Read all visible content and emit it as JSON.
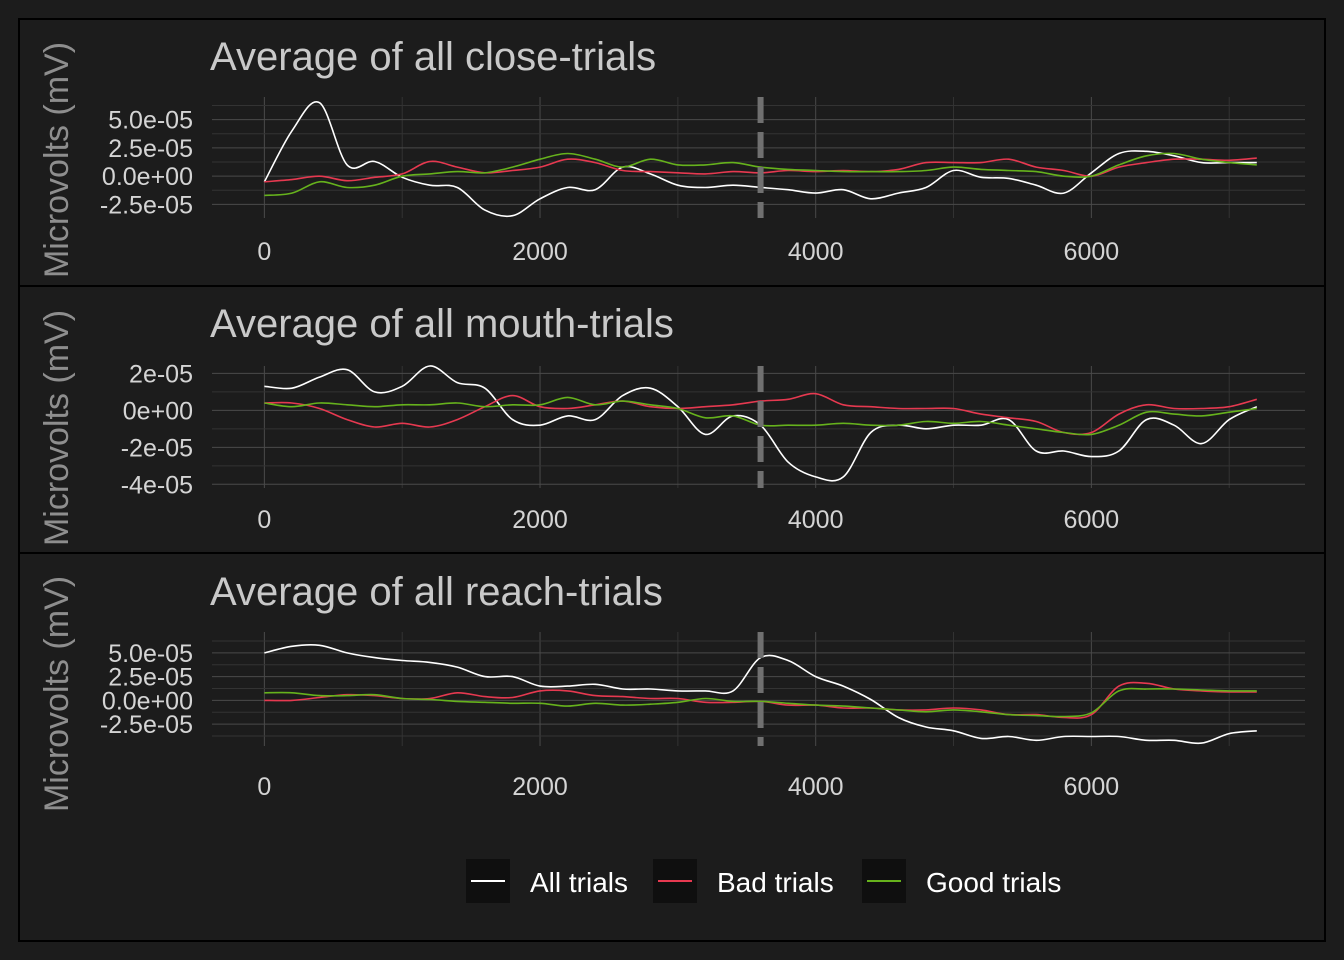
{
  "colors": {
    "background": "#1c1c1c",
    "panel_border": "#000000",
    "grid_major": "#4a4a4a",
    "grid_minor": "#333333",
    "event_marker": "#707070",
    "legend_key_bg": "#0f0f0f"
  },
  "legend": {
    "placement": "bottom",
    "entries": [
      {
        "label": "All trials",
        "color": "#ffffff"
      },
      {
        "label": "Bad trials",
        "color": "#e63950"
      },
      {
        "label": "Good trials",
        "color": "#66b21c"
      }
    ]
  },
  "chart_data": [
    {
      "type": "line",
      "title": "Average of all close-trials",
      "xlabel": "",
      "ylabel": "Microvolts (mV)",
      "xlim": [
        -380,
        7550
      ],
      "ylim": [
        -3.7e-05,
        7e-05
      ],
      "x_ticks": [
        0,
        2000,
        4000,
        6000
      ],
      "x_tick_labels": [
        "0",
        "2000",
        "4000",
        "6000"
      ],
      "y_ticks": [
        -2.5e-05,
        0,
        2.5e-05,
        5e-05
      ],
      "y_tick_labels": [
        "-2.5e-05",
        "0.0e+00",
        "2.5e-05",
        "5.0e-05"
      ],
      "event_line_x": 3600,
      "grid": true,
      "series": [
        {
          "name": "All trials",
          "x": [
            0,
            200,
            400,
            600,
            800,
            1000,
            1200,
            1400,
            1600,
            1800,
            2000,
            2200,
            2400,
            2600,
            2800,
            3000,
            3200,
            3400,
            3600,
            3800,
            4000,
            4200,
            4400,
            4600,
            4800,
            5000,
            5200,
            5400,
            5600,
            5800,
            6000,
            6200,
            6400,
            6600,
            6800,
            7000,
            7200
          ],
          "y": [
            -5e-06,
            4e-05,
            6.5e-05,
            1e-05,
            1.3e-05,
            -1e-06,
            -8e-06,
            -1e-05,
            -3e-05,
            -3.5e-05,
            -2e-05,
            -1e-05,
            -1.2e-05,
            8e-06,
            2e-06,
            -8e-06,
            -1e-05,
            -8e-06,
            -1e-05,
            -1.2e-05,
            -1.5e-05,
            -1.2e-05,
            -2e-05,
            -1.5e-05,
            -1e-05,
            5e-06,
            -1e-06,
            -2e-06,
            -8e-06,
            -1.5e-05,
            3e-06,
            2e-05,
            2.2e-05,
            1.8e-05,
            1.2e-05,
            1.2e-05,
            1.2e-05
          ]
        },
        {
          "name": "Bad trials",
          "x": [
            0,
            200,
            400,
            600,
            800,
            1000,
            1200,
            1400,
            1600,
            1800,
            2000,
            2200,
            2400,
            2600,
            2800,
            3000,
            3200,
            3400,
            3600,
            3800,
            4000,
            4200,
            4400,
            4600,
            4800,
            5000,
            5200,
            5400,
            5600,
            5800,
            6000,
            6200,
            6400,
            6600,
            6800,
            7000,
            7200
          ],
          "y": [
            -5e-06,
            -3e-06,
            0,
            -4e-06,
            -1e-06,
            2e-06,
            1.3e-05,
            8e-06,
            3e-06,
            5e-06,
            8e-06,
            1.5e-05,
            1.2e-05,
            5e-06,
            4e-06,
            3e-06,
            2e-06,
            4e-06,
            3e-06,
            5e-06,
            4e-06,
            5e-06,
            4e-06,
            6e-06,
            1.2e-05,
            1.2e-05,
            1.2e-05,
            1.5e-05,
            8e-06,
            5e-06,
            0,
            8e-06,
            1.2e-05,
            1.5e-05,
            1.5e-05,
            1.4e-05,
            1.6e-05
          ]
        },
        {
          "name": "Good trials",
          "x": [
            0,
            200,
            400,
            600,
            800,
            1000,
            1200,
            1400,
            1600,
            1800,
            2000,
            2200,
            2400,
            2600,
            2800,
            3000,
            3200,
            3400,
            3600,
            3800,
            4000,
            4200,
            4400,
            4600,
            4800,
            5000,
            5200,
            5400,
            5600,
            5800,
            6000,
            6200,
            6400,
            6600,
            6800,
            7000,
            7200
          ],
          "y": [
            -1.7e-05,
            -1.5e-05,
            -5e-06,
            -1e-05,
            -8e-06,
            0,
            2e-06,
            4e-06,
            3e-06,
            8e-06,
            1.5e-05,
            2e-05,
            1.5e-05,
            8e-06,
            1.5e-05,
            1e-05,
            1e-05,
            1.2e-05,
            8e-06,
            6e-06,
            5e-06,
            4e-06,
            4e-06,
            4e-06,
            5e-06,
            8e-06,
            6e-06,
            5e-06,
            4e-06,
            0,
            0,
            1e-05,
            1.8e-05,
            2e-05,
            1.5e-05,
            1.2e-05,
            1e-05
          ]
        }
      ]
    },
    {
      "type": "line",
      "title": "Average of all mouth-trials",
      "xlabel": "",
      "ylabel": "Microvolts (mV)",
      "xlim": [
        -380,
        7550
      ],
      "ylim": [
        -4.2e-05,
        2.4e-05
      ],
      "x_ticks": [
        0,
        2000,
        4000,
        6000
      ],
      "x_tick_labels": [
        "0",
        "2000",
        "4000",
        "6000"
      ],
      "y_ticks": [
        -4e-05,
        -2e-05,
        0,
        2e-05
      ],
      "y_tick_labels": [
        "-4e-05",
        "-2e-05",
        "0e+00",
        "2e-05"
      ],
      "event_line_x": 3600,
      "grid": true,
      "series": [
        {
          "name": "All trials",
          "x": [
            0,
            200,
            400,
            600,
            800,
            1000,
            1200,
            1400,
            1600,
            1800,
            2000,
            2200,
            2400,
            2600,
            2800,
            3000,
            3200,
            3400,
            3600,
            3800,
            4000,
            4200,
            4400,
            4600,
            4800,
            5000,
            5200,
            5400,
            5600,
            5800,
            6000,
            6200,
            6400,
            6600,
            6800,
            7000,
            7200
          ],
          "y": [
            1.3e-05,
            1.2e-05,
            1.8e-05,
            2.2e-05,
            1e-05,
            1.3e-05,
            2.4e-05,
            1.5e-05,
            1.2e-05,
            -5e-06,
            -8e-06,
            -3e-06,
            -5e-06,
            8e-06,
            1.2e-05,
            2e-06,
            -1.3e-05,
            -3e-06,
            -8e-06,
            -2.8e-05,
            -3.6e-05,
            -3.6e-05,
            -1.2e-05,
            -8e-06,
            -1e-05,
            -8e-06,
            -8e-06,
            -5e-06,
            -2.2e-05,
            -2.2e-05,
            -2.5e-05,
            -2.2e-05,
            -5e-06,
            -8e-06,
            -1.8e-05,
            -5e-06,
            2e-06
          ]
        },
        {
          "name": "Bad trials",
          "x": [
            0,
            200,
            400,
            600,
            800,
            1000,
            1200,
            1400,
            1600,
            1800,
            2000,
            2200,
            2400,
            2600,
            2800,
            3000,
            3200,
            3400,
            3600,
            3800,
            4000,
            4200,
            4400,
            4600,
            4800,
            5000,
            5200,
            5400,
            5600,
            5800,
            6000,
            6200,
            6400,
            6600,
            6800,
            7000,
            7200
          ],
          "y": [
            4e-06,
            4e-06,
            1e-06,
            -5e-06,
            -9e-06,
            -7e-06,
            -9e-06,
            -5e-06,
            2e-06,
            8e-06,
            2e-06,
            1e-06,
            3e-06,
            5e-06,
            2e-06,
            1e-06,
            2e-06,
            3e-06,
            5e-06,
            6e-06,
            9e-06,
            3e-06,
            2e-06,
            1e-06,
            1e-06,
            1e-06,
            -2e-06,
            -4e-06,
            -6e-06,
            -1.2e-05,
            -1.2e-05,
            -2e-06,
            3e-06,
            1e-06,
            1e-06,
            2e-06,
            6e-06
          ]
        },
        {
          "name": "Good trials",
          "x": [
            0,
            200,
            400,
            600,
            800,
            1000,
            1200,
            1400,
            1600,
            1800,
            2000,
            2200,
            2400,
            2600,
            2800,
            3000,
            3200,
            3400,
            3600,
            3800,
            4000,
            4200,
            4400,
            4600,
            4800,
            5000,
            5200,
            5400,
            5600,
            5800,
            6000,
            6200,
            6400,
            6600,
            6800,
            7000,
            7200
          ],
          "y": [
            4e-06,
            2e-06,
            4e-06,
            3e-06,
            2e-06,
            3e-06,
            3e-06,
            4e-06,
            2e-06,
            3e-06,
            3e-06,
            7e-06,
            3e-06,
            5e-06,
            3e-06,
            1e-06,
            -4e-06,
            -3e-06,
            -8e-06,
            -8e-06,
            -8e-06,
            -7e-06,
            -8e-06,
            -8e-06,
            -6e-06,
            -7e-06,
            -6e-06,
            -8e-06,
            -1e-05,
            -1.2e-05,
            -1.3e-05,
            -8e-06,
            -1e-06,
            -2e-06,
            -3e-06,
            -1e-06,
            1e-06
          ]
        }
      ]
    },
    {
      "type": "line",
      "title": "Average of all reach-trials",
      "xlabel": "",
      "ylabel": "Microvolts (mV)",
      "xlim": [
        -380,
        7550
      ],
      "ylim": [
        -4.8e-05,
        7.2e-05
      ],
      "x_ticks": [
        0,
        2000,
        4000,
        6000
      ],
      "x_tick_labels": [
        "0",
        "2000",
        "4000",
        "6000"
      ],
      "y_ticks": [
        -2.5e-05,
        0,
        2.5e-05,
        5e-05
      ],
      "y_tick_labels": [
        "-2.5e-05",
        "0.0e+00",
        "2.5e-05",
        "5.0e-05"
      ],
      "event_line_x": 3600,
      "grid": true,
      "series": [
        {
          "name": "All trials",
          "x": [
            0,
            200,
            400,
            600,
            800,
            1000,
            1200,
            1400,
            1600,
            1800,
            2000,
            2200,
            2400,
            2600,
            2800,
            3000,
            3200,
            3400,
            3600,
            3800,
            4000,
            4200,
            4400,
            4600,
            4800,
            5000,
            5200,
            5400,
            5600,
            5800,
            6000,
            6200,
            6400,
            6600,
            6800,
            7000,
            7200
          ],
          "y": [
            5e-05,
            5.7e-05,
            5.8e-05,
            5e-05,
            4.5e-05,
            4.2e-05,
            4e-05,
            3.5e-05,
            2.5e-05,
            2.5e-05,
            1.5e-05,
            1.5e-05,
            1.7e-05,
            1.2e-05,
            1.2e-05,
            1e-05,
            1e-05,
            1e-05,
            4.5e-05,
            4.2e-05,
            2.5e-05,
            1.5e-05,
            1e-06,
            -1.8e-05,
            -2.8e-05,
            -3.2e-05,
            -4e-05,
            -3.8e-05,
            -4.2e-05,
            -3.8e-05,
            -3.8e-05,
            -3.8e-05,
            -4.2e-05,
            -4.2e-05,
            -4.5e-05,
            -3.5e-05,
            -3.2e-05
          ]
        },
        {
          "name": "Bad trials",
          "x": [
            0,
            200,
            400,
            600,
            800,
            1000,
            1200,
            1400,
            1600,
            1800,
            2000,
            2200,
            2400,
            2600,
            2800,
            3000,
            3200,
            3400,
            3600,
            3800,
            4000,
            4200,
            4400,
            4600,
            4800,
            5000,
            5200,
            5400,
            5600,
            5800,
            6000,
            6200,
            6400,
            6600,
            6800,
            7000,
            7200
          ],
          "y": [
            0,
            0,
            3e-06,
            6e-06,
            5e-06,
            2e-06,
            2e-06,
            8e-06,
            4e-06,
            3e-06,
            1e-05,
            1e-05,
            5e-06,
            4e-06,
            2e-06,
            2e-06,
            -2e-06,
            -2e-06,
            -1e-06,
            -5e-06,
            -5e-06,
            -8e-06,
            -8e-06,
            -1e-05,
            -1e-05,
            -8e-06,
            -1e-05,
            -1.5e-05,
            -1.5e-05,
            -1.8e-05,
            -1.5e-05,
            1.5e-05,
            1.8e-05,
            1.2e-05,
            1e-05,
            9e-06,
            9e-06
          ]
        },
        {
          "name": "Good trials",
          "x": [
            0,
            200,
            400,
            600,
            800,
            1000,
            1200,
            1400,
            1600,
            1800,
            2000,
            2200,
            2400,
            2600,
            2800,
            3000,
            3200,
            3400,
            3600,
            3800,
            4000,
            4200,
            4400,
            4600,
            4800,
            5000,
            5200,
            5400,
            5600,
            5800,
            6000,
            6200,
            6400,
            6600,
            6800,
            7000,
            7200
          ],
          "y": [
            8e-06,
            8e-06,
            5e-06,
            5e-06,
            6e-06,
            2e-06,
            1e-06,
            -1e-06,
            -2e-06,
            -3e-06,
            -3e-06,
            -6e-06,
            -3e-06,
            -5e-06,
            -4e-06,
            -2e-06,
            2e-06,
            -1e-06,
            -1e-06,
            -3e-06,
            -5e-06,
            -6e-06,
            -8e-06,
            -1e-05,
            -1.2e-05,
            -1e-05,
            -1.2e-05,
            -1.5e-05,
            -1.6e-05,
            -1.7e-05,
            -1.3e-05,
            1e-05,
            1.2e-05,
            1.2e-05,
            1.1e-05,
            1e-05,
            1e-05
          ]
        }
      ]
    }
  ]
}
